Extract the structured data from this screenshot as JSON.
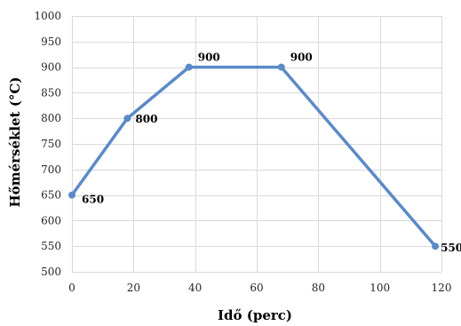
{
  "chart_data": {
    "type": "line",
    "title": "",
    "xlabel": "Idő (perc)",
    "ylabel": "Hőmérséklet (°C)",
    "xlim": [
      0,
      120
    ],
    "ylim": [
      500,
      1000
    ],
    "xticks": [
      0,
      20,
      40,
      60,
      80,
      100,
      120
    ],
    "yticks": [
      500,
      550,
      600,
      650,
      700,
      750,
      800,
      850,
      900,
      950,
      1000
    ],
    "grid": true,
    "legend": "none",
    "series": [
      {
        "color": "#5b8ac6",
        "points": [
          {
            "x": 0,
            "y": 650,
            "label": "650"
          },
          {
            "x": 18,
            "y": 800,
            "label": "800"
          },
          {
            "x": 38,
            "y": 900,
            "label": "900"
          },
          {
            "x": 68,
            "y": 900,
            "label": "900"
          },
          {
            "x": 118,
            "y": 550,
            "label": "550"
          }
        ]
      }
    ]
  }
}
